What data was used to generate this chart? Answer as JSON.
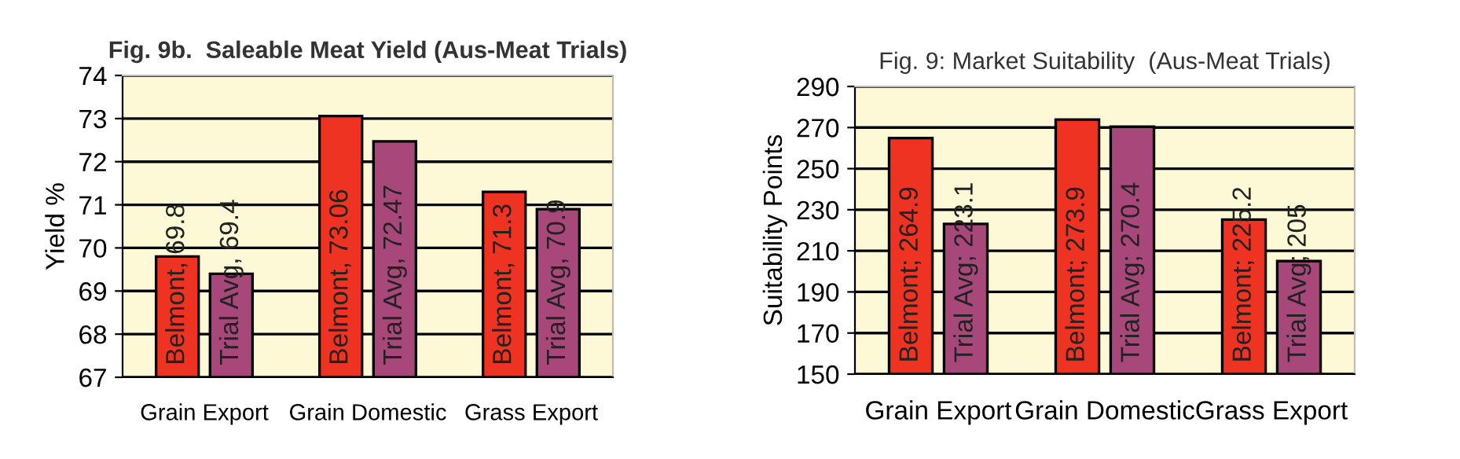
{
  "chart_data": [
    {
      "type": "bar",
      "title": "Fig. 9b.  Saleable Meat Yield (Aus-Meat Trials)",
      "ylabel": "Yield %",
      "categories": [
        "Grain Export",
        "Grain Domestic",
        "Grass Export"
      ],
      "series": [
        {
          "color": "#ee3322",
          "values": [
            69.8,
            73.06,
            71.3
          ],
          "value_labels": [
            "Belmont, 69.8",
            "Belmont, 73.06",
            "Belmont, 71.3"
          ]
        },
        {
          "color": "#a8487a",
          "values": [
            69.4,
            72.47,
            70.9
          ],
          "value_labels": [
            "Trial Avg, 69.4",
            "Trial Avg, 72.47",
            "Trial Avg, 70.9"
          ]
        }
      ],
      "ylim": [
        67,
        74
      ],
      "yticks": [
        67,
        68,
        69,
        70,
        71,
        72,
        73,
        74
      ],
      "grid": "y",
      "legend": false
    },
    {
      "type": "bar",
      "title": "Fig. 9: Market Suitability  (Aus-Meat Trials)",
      "ylabel": "Suitability Points",
      "categories": [
        "Grain Export",
        "Grain Domestic",
        "Grass Export"
      ],
      "series": [
        {
          "color": "#ee3322",
          "values": [
            264.9,
            273.9,
            225.2
          ],
          "value_labels": [
            "Belmont; 264.9",
            "Belmont; 273.9",
            "Belmont; 225.2"
          ]
        },
        {
          "color": "#a8487a",
          "values": [
            223.1,
            270.4,
            205
          ],
          "value_labels": [
            "Trial Avg; 223.1",
            "Trial Avg; 270.4",
            "Trial Avg; 205"
          ]
        }
      ],
      "ylim": [
        150,
        290
      ],
      "yticks": [
        150,
        170,
        190,
        210,
        230,
        250,
        270,
        290
      ],
      "grid": "y",
      "legend": false
    }
  ]
}
